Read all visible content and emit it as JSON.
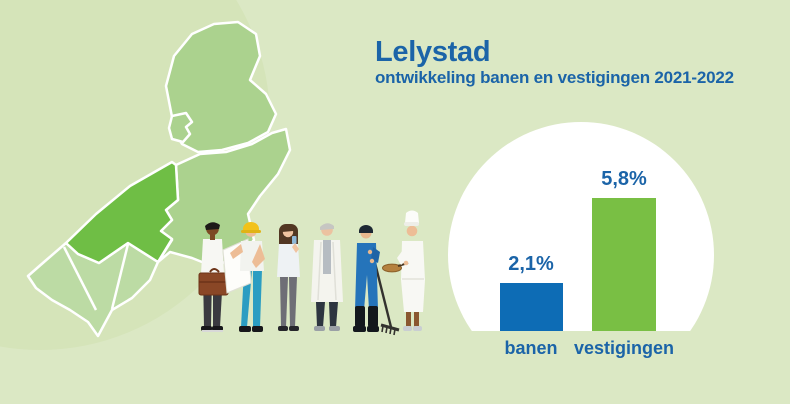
{
  "header": {
    "title": "Lelystad",
    "subtitle": "ontwikkeling banen en vestigingen 2021-2022"
  },
  "chart_data": {
    "type": "bar",
    "title": "Lelystad",
    "subtitle": "ontwikkeling banen en vestigingen 2021-2022",
    "categories": [
      "banen",
      "vestigingen"
    ],
    "values": [
      2.1,
      5.8
    ],
    "value_labels": [
      "2,1%",
      "5,8%"
    ],
    "bar_colors": [
      "#0d6cb5",
      "#79bf44"
    ],
    "xlabel": "",
    "ylabel": "",
    "ylim": [
      0,
      5.8
    ],
    "grid": false,
    "legend": false,
    "plot_background": "white circle on light green page"
  },
  "colors": {
    "page_background": "#dbe8c4",
    "background_blob": "#d5e4b9",
    "map_region_light": "#abd28e",
    "map_region_lighter": "#bcdba4",
    "map_region_highlight": "#6fbe45",
    "map_border": "#ffffff",
    "circle_fill": "#ffffff",
    "bar_blue": "#0d6cb5",
    "bar_green": "#79bf44",
    "text_blue": "#1b64a8"
  },
  "map": {
    "highlighted_region": "Lelystad"
  },
  "icons": [
    "businessman-with-briefcase-icon",
    "construction-worker-with-plans-icon",
    "office-woman-icon",
    "doctor-lab-coat-icon",
    "gardener-blue-overalls-rake-icon",
    "chef-with-pan-icon"
  ]
}
